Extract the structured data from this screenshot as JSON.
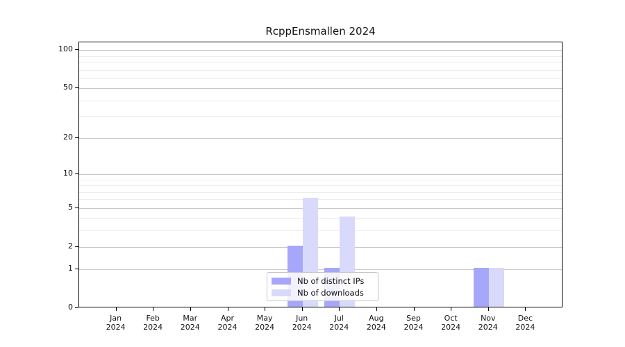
{
  "window": {
    "background": "#ffffff"
  },
  "chart_data": {
    "type": "bar",
    "title": "RcppEnsmallen 2024",
    "categories": [
      "Jan",
      "Feb",
      "Mar",
      "Apr",
      "May",
      "Jun",
      "Jul",
      "Aug",
      "Sep",
      "Oct",
      "Nov",
      "Dec"
    ],
    "x_year_label": "2024",
    "xlabel": "",
    "ylabel": "",
    "series": [
      {
        "name": "Nb of distinct IPs",
        "color": "#a6a6fa",
        "values": [
          0,
          0,
          0,
          0,
          0,
          2,
          1,
          0,
          0,
          0,
          1,
          0
        ]
      },
      {
        "name": "Nb of downloads",
        "color": "#d9d9fb",
        "values": [
          0,
          0,
          0,
          0,
          0,
          6,
          4,
          0,
          0,
          0,
          1,
          0
        ]
      }
    ],
    "y_axis": {
      "scale": "log1p",
      "ylim": [
        0,
        115
      ],
      "major_ticks": [
        0,
        1,
        2,
        5,
        10,
        20,
        50,
        100
      ],
      "minor_gridlines": [
        3,
        4,
        6,
        7,
        8,
        9,
        30,
        40,
        60,
        70,
        80,
        90
      ]
    },
    "grid": "horizontal",
    "legend": {
      "position": "lower-center"
    },
    "frame_color": "#000000",
    "gridline_major_color": "#c8c8c8",
    "gridline_minor_color": "#ececec"
  }
}
